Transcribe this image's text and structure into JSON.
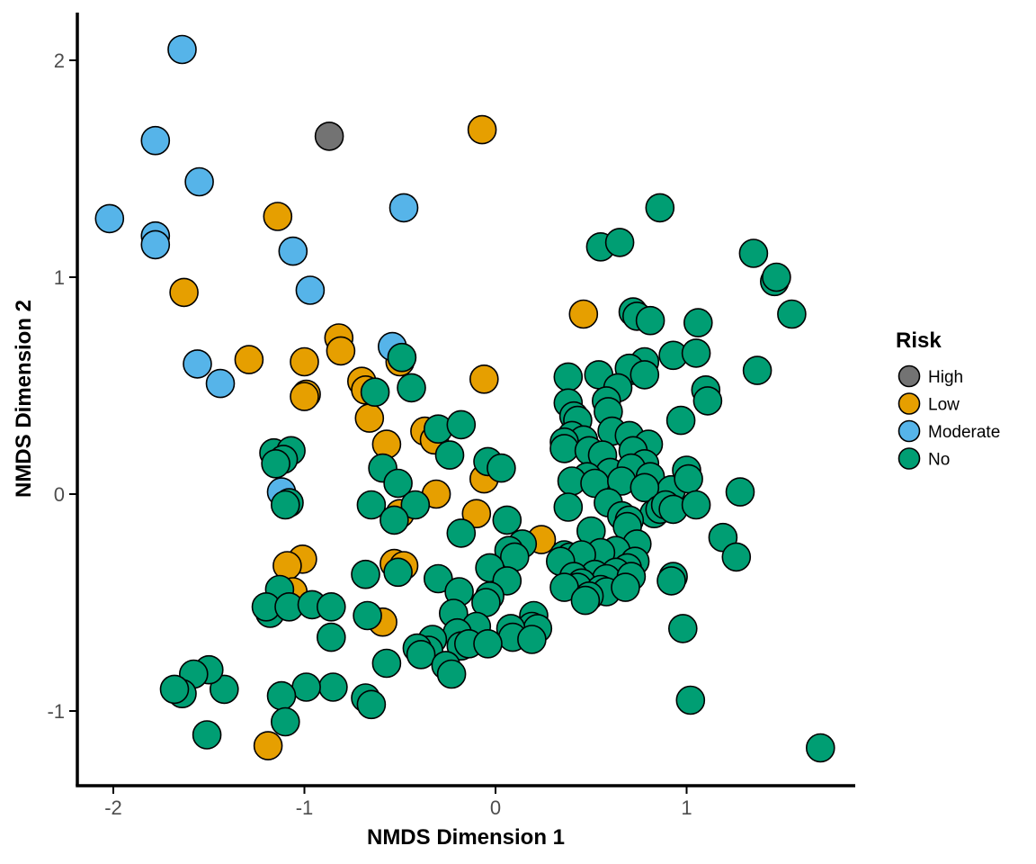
{
  "chart_data": {
    "type": "scatter",
    "xlabel": "NMDS Dimension 1",
    "ylabel": "NMDS Dimension 2",
    "xlim": [
      -2.2,
      1.9
    ],
    "ylim": [
      -1.34,
      2.2
    ],
    "xticks": [
      -2,
      -1,
      0,
      1
    ],
    "yticks": [
      -1,
      0,
      1,
      2
    ],
    "xtick_labels": [
      "-2",
      "-1",
      "0",
      "1"
    ],
    "ytick_labels": [
      "-1",
      "0",
      "1",
      "2"
    ],
    "grid": false,
    "legend": {
      "title": "Risk",
      "placement": "right",
      "entries": [
        "High",
        "Low",
        "Moderate",
        "No"
      ]
    },
    "series": [
      {
        "name": "High",
        "color": "#737373",
        "points": [
          [
            -0.87,
            1.65
          ]
        ]
      },
      {
        "name": "Low",
        "color": "#E69F00",
        "points": [
          [
            -0.07,
            1.68
          ],
          [
            -1.14,
            1.28
          ],
          [
            -1.63,
            0.93
          ],
          [
            0.46,
            0.83
          ],
          [
            -0.82,
            0.72
          ],
          [
            -0.81,
            0.66
          ],
          [
            -1.29,
            0.62
          ],
          [
            -1.0,
            0.61
          ],
          [
            -0.5,
            0.61
          ],
          [
            -0.06,
            0.53
          ],
          [
            -0.7,
            0.52
          ],
          [
            -0.68,
            0.48
          ],
          [
            -0.99,
            0.46
          ],
          [
            -1.0,
            0.45
          ],
          [
            -0.66,
            0.35
          ],
          [
            -0.37,
            0.29
          ],
          [
            -0.32,
            0.25
          ],
          [
            -0.57,
            0.23
          ],
          [
            -0.06,
            0.07
          ],
          [
            -0.31,
            0.0
          ],
          [
            -0.1,
            -0.09
          ],
          [
            -0.5,
            -0.09
          ],
          [
            0.24,
            -0.21
          ],
          [
            -1.01,
            -0.3
          ],
          [
            -1.09,
            -0.33
          ],
          [
            -0.53,
            -0.32
          ],
          [
            -0.48,
            -0.33
          ],
          [
            -1.06,
            -0.45
          ],
          [
            -0.59,
            -0.59
          ],
          [
            -1.19,
            -1.16
          ]
        ]
      },
      {
        "name": "Moderate",
        "color": "#56B4E9",
        "points": [
          [
            -1.64,
            2.05
          ],
          [
            -1.78,
            1.63
          ],
          [
            -1.55,
            1.44
          ],
          [
            -0.48,
            1.32
          ],
          [
            -2.02,
            1.27
          ],
          [
            -1.78,
            1.19
          ],
          [
            -1.78,
            1.15
          ],
          [
            -1.06,
            1.12
          ],
          [
            -0.97,
            0.94
          ],
          [
            -0.54,
            0.68
          ],
          [
            -1.56,
            0.6
          ],
          [
            -1.44,
            0.51
          ],
          [
            -1.12,
            0.01
          ]
        ]
      },
      {
        "name": "No",
        "color": "#009E73",
        "points": [
          [
            0.86,
            1.32
          ],
          [
            0.55,
            1.14
          ],
          [
            0.65,
            1.16
          ],
          [
            1.35,
            1.11
          ],
          [
            1.46,
            0.98
          ],
          [
            1.47,
            1.0
          ],
          [
            1.55,
            0.83
          ],
          [
            0.72,
            0.84
          ],
          [
            0.74,
            0.82
          ],
          [
            0.81,
            0.8
          ],
          [
            1.06,
            0.79
          ],
          [
            0.93,
            0.64
          ],
          [
            1.05,
            0.65
          ],
          [
            0.78,
            0.61
          ],
          [
            0.71,
            0.57
          ],
          [
            0.7,
            0.58
          ],
          [
            0.78,
            0.55
          ],
          [
            0.54,
            0.55
          ],
          [
            0.38,
            0.54
          ],
          [
            1.37,
            0.57
          ],
          [
            0.64,
            0.49
          ],
          [
            1.1,
            0.48
          ],
          [
            1.11,
            0.43
          ],
          [
            0.58,
            0.43
          ],
          [
            0.38,
            0.42
          ],
          [
            0.59,
            0.38
          ],
          [
            0.41,
            0.36
          ],
          [
            0.97,
            0.34
          ],
          [
            0.43,
            0.34
          ],
          [
            0.61,
            0.29
          ],
          [
            0.7,
            0.27
          ],
          [
            0.4,
            0.27
          ],
          [
            0.46,
            0.25
          ],
          [
            0.8,
            0.23
          ],
          [
            0.36,
            0.24
          ],
          [
            0.36,
            0.21
          ],
          [
            0.49,
            0.2
          ],
          [
            0.56,
            0.18
          ],
          [
            0.72,
            0.2
          ],
          [
            0.78,
            0.14
          ],
          [
            0.6,
            0.1
          ],
          [
            0.48,
            0.08
          ],
          [
            0.71,
            0.12
          ],
          [
            0.81,
            0.08
          ],
          [
            0.4,
            0.06
          ],
          [
            0.52,
            0.05
          ],
          [
            0.66,
            0.06
          ],
          [
            0.92,
            0.02
          ],
          [
            0.78,
            0.03
          ],
          [
            1.0,
            0.11
          ],
          [
            1.01,
            0.07
          ],
          [
            1.28,
            0.01
          ],
          [
            0.59,
            -0.04
          ],
          [
            0.83,
            -0.09
          ],
          [
            0.86,
            -0.07
          ],
          [
            0.89,
            -0.05
          ],
          [
            0.38,
            -0.06
          ],
          [
            0.66,
            -0.1
          ],
          [
            0.7,
            -0.12
          ],
          [
            0.93,
            -0.07
          ],
          [
            1.05,
            -0.05
          ],
          [
            0.69,
            -0.15
          ],
          [
            0.5,
            -0.17
          ],
          [
            1.19,
            -0.2
          ],
          [
            1.26,
            -0.29
          ],
          [
            0.74,
            -0.23
          ],
          [
            0.63,
            -0.26
          ],
          [
            0.55,
            -0.27
          ],
          [
            0.36,
            -0.28
          ],
          [
            0.39,
            -0.29
          ],
          [
            0.42,
            -0.31
          ],
          [
            0.45,
            -0.28
          ],
          [
            0.34,
            -0.31
          ],
          [
            0.73,
            -0.31
          ],
          [
            0.69,
            -0.34
          ],
          [
            0.63,
            -0.36
          ],
          [
            0.52,
            -0.37
          ],
          [
            0.41,
            -0.38
          ],
          [
            0.58,
            -0.39
          ],
          [
            0.93,
            -0.38
          ],
          [
            0.92,
            -0.4
          ],
          [
            0.71,
            -0.38
          ],
          [
            0.45,
            -0.41
          ],
          [
            0.43,
            -0.43
          ],
          [
            0.55,
            -0.44
          ],
          [
            0.58,
            -0.45
          ],
          [
            0.68,
            -0.43
          ],
          [
            0.36,
            -0.43
          ],
          [
            0.49,
            -0.47
          ],
          [
            0.47,
            -0.49
          ],
          [
            0.98,
            -0.62
          ],
          [
            1.02,
            -0.95
          ],
          [
            1.7,
            -1.17
          ],
          [
            0.06,
            -0.12
          ],
          [
            -0.18,
            -0.18
          ],
          [
            0.14,
            -0.23
          ],
          [
            0.07,
            -0.26
          ],
          [
            0.1,
            -0.29
          ],
          [
            -0.03,
            -0.34
          ],
          [
            0.06,
            -0.4
          ],
          [
            -0.3,
            -0.39
          ],
          [
            -0.19,
            -0.45
          ],
          [
            -0.03,
            -0.47
          ],
          [
            -0.05,
            -0.5
          ],
          [
            -0.22,
            -0.55
          ],
          [
            0.2,
            -0.56
          ],
          [
            0.19,
            -0.61
          ],
          [
            0.22,
            -0.62
          ],
          [
            0.08,
            -0.62
          ],
          [
            0.09,
            -0.66
          ],
          [
            0.19,
            -0.67
          ],
          [
            -0.1,
            -0.61
          ],
          [
            -0.2,
            -0.64
          ],
          [
            -0.18,
            -0.7
          ],
          [
            -0.14,
            -0.69
          ],
          [
            -0.33,
            -0.67
          ],
          [
            -0.04,
            -0.69
          ],
          [
            -0.35,
            -0.72
          ],
          [
            -0.41,
            -0.71
          ],
          [
            -0.39,
            -0.74
          ],
          [
            -0.26,
            -0.79
          ],
          [
            -0.23,
            -0.83
          ],
          [
            -0.57,
            -0.78
          ],
          [
            -0.68,
            -0.94
          ],
          [
            -0.65,
            -0.97
          ],
          [
            -0.85,
            -0.89
          ],
          [
            -0.99,
            -0.89
          ],
          [
            -1.12,
            -0.93
          ],
          [
            -1.1,
            -1.05
          ],
          [
            -1.42,
            -0.9
          ],
          [
            -1.5,
            -0.81
          ],
          [
            -1.58,
            -0.83
          ],
          [
            -1.64,
            -0.92
          ],
          [
            -1.68,
            -0.9
          ],
          [
            -1.51,
            -1.11
          ],
          [
            -1.13,
            -0.44
          ],
          [
            -1.18,
            -0.55
          ],
          [
            -1.2,
            -0.52
          ],
          [
            -1.08,
            -0.52
          ],
          [
            -0.96,
            -0.51
          ],
          [
            -0.86,
            -0.52
          ],
          [
            -0.86,
            -0.66
          ],
          [
            -0.67,
            -0.56
          ],
          [
            -0.68,
            -0.37
          ],
          [
            -0.63,
            0.47
          ],
          [
            -0.44,
            0.49
          ],
          [
            -0.3,
            0.3
          ],
          [
            -0.18,
            0.32
          ],
          [
            -0.24,
            0.18
          ],
          [
            -0.59,
            0.12
          ],
          [
            -0.51,
            0.05
          ],
          [
            -0.42,
            -0.05
          ],
          [
            -0.65,
            -0.05
          ],
          [
            -0.53,
            -0.12
          ],
          [
            -0.51,
            -0.36
          ],
          [
            -0.04,
            0.15
          ],
          [
            0.03,
            0.12
          ],
          [
            -1.16,
            0.19
          ],
          [
            -1.07,
            0.2
          ],
          [
            -1.11,
            0.16
          ],
          [
            -1.15,
            0.14
          ],
          [
            -1.08,
            -0.04
          ],
          [
            -1.1,
            -0.05
          ],
          [
            -0.49,
            0.63
          ]
        ]
      }
    ]
  }
}
